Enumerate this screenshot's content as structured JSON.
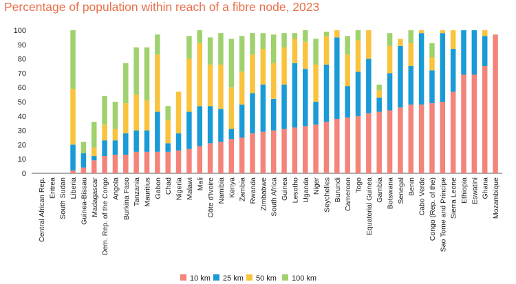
{
  "title": "Percentage of population within reach of a fibre node, 2023",
  "chart_data": {
    "type": "bar",
    "stacked": true,
    "title": "Percentage of population within reach of a fibre node, 2023",
    "xlabel": "",
    "ylabel": "",
    "ylim": [
      0,
      100
    ],
    "yticks": [
      0,
      10,
      20,
      30,
      40,
      50,
      60,
      70,
      80,
      90,
      100
    ],
    "grid": false,
    "legend_position": "bottom",
    "categories": [
      "Central African Rep.",
      "Eritrea",
      "South Sudan",
      "Liberia",
      "Guinea-Bissau",
      "Madagascar",
      "Dem. Rep. of the Congo",
      "Angola",
      "Burkina Faso",
      "Tanzania",
      "Mauritius",
      "Gabon",
      "Chad",
      "Nigeria",
      "Malawi",
      "Mali",
      "Côte d'Ivoire",
      "Namibia",
      "Kenya",
      "Zambia",
      "Rwanda",
      "Zimbabwe",
      "South Africa",
      "Guinea",
      "Lesotho",
      "Uganda",
      "Niger",
      "Seychelles",
      "Burundi",
      "Cameroon",
      "Togo",
      "Equatorial Guinea",
      "Gambia",
      "Botswana",
      "Senegal",
      "Benin",
      "Cabo Verde",
      "Congo (Rep. of the)",
      "Sao Tome and Principe",
      "Sierra Leone",
      "Ethiopia",
      "Eswatini",
      "Ghana",
      "Mozambique"
    ],
    "series": [
      {
        "name": "10 km",
        "color": "#f4837a",
        "values": [
          0,
          0,
          0,
          2,
          4,
          9,
          12,
          13,
          13,
          15,
          15,
          15,
          15,
          16,
          17,
          19,
          21,
          22,
          24,
          25,
          28,
          29,
          30,
          31,
          32,
          33,
          34,
          36,
          38,
          39,
          40,
          42,
          43,
          44,
          46,
          48,
          48,
          49,
          50,
          57,
          69,
          69,
          75,
          97
        ]
      },
      {
        "name": "25 km",
        "color": "#1a9ad6",
        "values": [
          0,
          0,
          0,
          18,
          10,
          3,
          11,
          10,
          15,
          15,
          15,
          28,
          6,
          12,
          26,
          28,
          26,
          23,
          7,
          23,
          28,
          33,
          22,
          31,
          45,
          40,
          16,
          40,
          57,
          22,
          31,
          38,
          10,
          26,
          43,
          27,
          50,
          23,
          48,
          30,
          31,
          31,
          21,
          0
        ]
      },
      {
        "name": "50 km",
        "color": "#f9c33d",
        "values": [
          0,
          0,
          0,
          39,
          0,
          6,
          11,
          8,
          21,
          25,
          21,
          40,
          16,
          29,
          37,
          44,
          29,
          31,
          29,
          23,
          27,
          25,
          25,
          26,
          17,
          19,
          26,
          20,
          5,
          22,
          22,
          20,
          5,
          19,
          5,
          16,
          2,
          9,
          2,
          13,
          0,
          0,
          4,
          0
        ]
      },
      {
        "name": "100 km",
        "color": "#9fd16d",
        "values": [
          0,
          0,
          0,
          41,
          8,
          18,
          20,
          19,
          28,
          33,
          37,
          14,
          10,
          0,
          16,
          9,
          19,
          22,
          34,
          25,
          15,
          11,
          20,
          10,
          4,
          8,
          18,
          3,
          0,
          13,
          7,
          0,
          4,
          9,
          0,
          9,
          0,
          10,
          0,
          0,
          0,
          0,
          0,
          0
        ]
      }
    ]
  }
}
